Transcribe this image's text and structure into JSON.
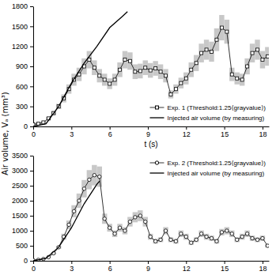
{
  "chart_data": [
    {
      "type": "line",
      "xlabel": "t (s)",
      "ylabel": "Air volume, Vₐ (mm³)",
      "xlim": [
        0,
        18.5
      ],
      "xticks": [
        0,
        3,
        6,
        9,
        12,
        15,
        18
      ],
      "ylim": [
        0,
        1800
      ],
      "yticks": [
        0,
        300,
        600,
        900,
        1200,
        1500,
        1800
      ],
      "legend": "lower right",
      "series": [
        {
          "name": "Exp. 1 (Threshold:1.25⟨grayvalue⟩)",
          "color": "#000000",
          "marker": "square",
          "line_style": "solid",
          "x": [
            0,
            0.4,
            0.8,
            1.2,
            1.6,
            2,
            2.4,
            2.8,
            3.2,
            3.6,
            4,
            4.4,
            4.8,
            5.2,
            5.6,
            6,
            6.4,
            6.8,
            7.2,
            7.6,
            8,
            8.4,
            8.8,
            9.2,
            9.6,
            10,
            10.4,
            10.8,
            11.2,
            11.6,
            12,
            12.4,
            12.8,
            13.2,
            13.6,
            14,
            14.4,
            14.8,
            15.2,
            15.6,
            16,
            16.4,
            16.8,
            17.2,
            17.6,
            18,
            18.4
          ],
          "values": [
            30,
            40,
            60,
            120,
            200,
            300,
            420,
            560,
            700,
            780,
            900,
            1000,
            880,
            760,
            700,
            640,
            700,
            850,
            1000,
            980,
            820,
            830,
            880,
            840,
            870,
            820,
            760,
            480,
            560,
            650,
            720,
            850,
            950,
            1100,
            1150,
            1120,
            1300,
            1480,
            1420,
            780,
            720,
            700,
            900,
            1100,
            1150,
            1000,
            1050
          ],
          "errors": [
            20,
            20,
            20,
            20,
            30,
            40,
            60,
            70,
            90,
            100,
            120,
            130,
            110,
            100,
            90,
            80,
            90,
            110,
            130,
            130,
            110,
            110,
            110,
            110,
            110,
            110,
            100,
            60,
            70,
            80,
            90,
            110,
            120,
            140,
            150,
            150,
            170,
            190,
            180,
            100,
            90,
            90,
            120,
            140,
            150,
            130,
            140
          ]
        },
        {
          "name": "Injected air volume (by measuring)",
          "color": "#000000",
          "marker": "none",
          "line_style": "solid",
          "x": [
            0,
            1,
            2,
            3,
            4,
            5,
            6,
            7,
            7.4
          ],
          "values": [
            0,
            40,
            300,
            650,
            950,
            1200,
            1480,
            1650,
            1720
          ]
        }
      ]
    },
    {
      "type": "line",
      "xlim": [
        0,
        18.5
      ],
      "xticks": [
        0,
        3,
        6,
        9,
        12,
        15,
        18
      ],
      "ylim": [
        0,
        3500
      ],
      "yticks": [
        0,
        500,
        1000,
        1500,
        2000,
        2500,
        3000,
        3500
      ],
      "legend": "upper right",
      "series": [
        {
          "name": "Exp. 2 (Threshold:1.25⟨grayvalue⟩)",
          "color": "#000000",
          "marker": "circle",
          "line_style": "solid",
          "x": [
            0,
            0.4,
            0.8,
            1.2,
            1.6,
            2,
            2.4,
            2.8,
            3.2,
            3.6,
            4,
            4.4,
            4.8,
            5.2,
            5.6,
            6,
            6.4,
            6.8,
            7.2,
            7.6,
            8,
            8.4,
            8.8,
            9.2,
            9.6,
            10,
            10.4,
            10.8,
            11.2,
            11.6,
            12,
            12.4,
            12.8,
            13.2,
            13.6,
            14,
            14.4,
            14.8,
            15.2,
            15.6,
            16,
            16.4,
            16.8,
            17.2,
            17.6,
            18,
            18.4
          ],
          "values": [
            20,
            30,
            60,
            120,
            250,
            450,
            800,
            1200,
            1650,
            2000,
            2400,
            2700,
            2850,
            2800,
            1400,
            1100,
            900,
            1100,
            1000,
            1300,
            1450,
            1500,
            1300,
            800,
            650,
            700,
            1000,
            700,
            650,
            900,
            800,
            600,
            700,
            900,
            800,
            750,
            650,
            950,
            1000,
            900,
            700,
            800,
            900,
            750,
            700,
            750,
            500
          ],
          "errors": [
            20,
            20,
            20,
            20,
            30,
            50,
            100,
            140,
            200,
            240,
            290,
            320,
            340,
            340,
            170,
            130,
            110,
            130,
            120,
            160,
            170,
            180,
            160,
            100,
            80,
            80,
            120,
            80,
            80,
            110,
            100,
            70,
            80,
            110,
            100,
            90,
            80,
            110,
            120,
            110,
            80,
            100,
            110,
            90,
            80,
            90,
            60
          ]
        },
        {
          "name": "Injected air volume (by measuring)",
          "color": "#000000",
          "marker": "none",
          "line_style": "solid",
          "x": [
            0,
            1,
            2,
            3,
            4,
            5,
            5.2
          ],
          "values": [
            0,
            80,
            450,
            1100,
            1900,
            2550,
            2650
          ]
        }
      ]
    }
  ]
}
